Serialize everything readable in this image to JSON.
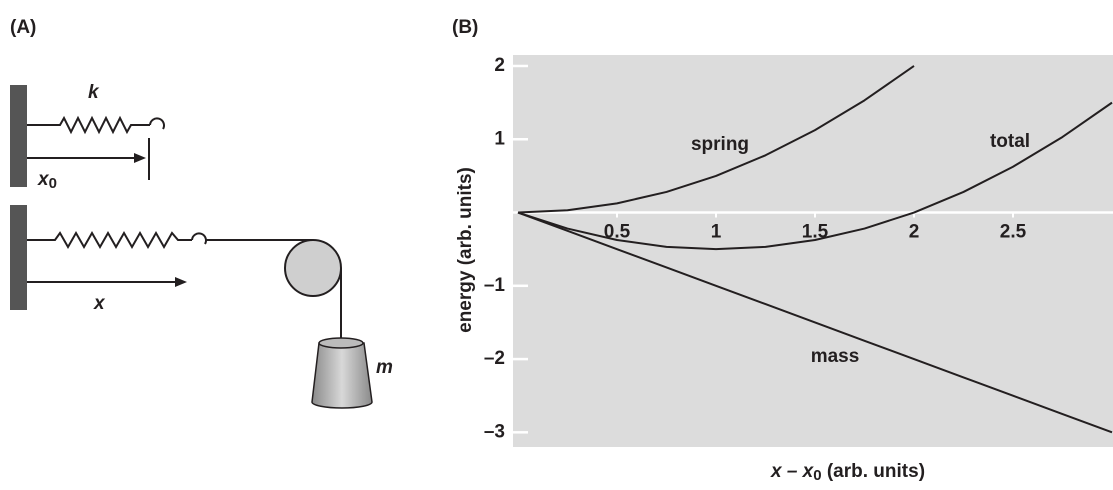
{
  "panel_a": {
    "label": "(A)",
    "spring_constant": "k",
    "x0": {
      "base": "x",
      "sub": "0"
    },
    "x": "x",
    "mass": "m"
  },
  "chart_data": {
    "type": "line",
    "panel_label": "(B)",
    "x": [
      0,
      0.25,
      0.5,
      0.75,
      1,
      1.25,
      1.5,
      1.75,
      2,
      2.25,
      2.5,
      2.75,
      3
    ],
    "series": [
      {
        "name": "spring",
        "color": "#231f20",
        "values": [
          0,
          0.03125,
          0.125,
          0.28125,
          0.5,
          0.78125,
          1.125,
          1.53125,
          2,
          null,
          null,
          null,
          null
        ]
      },
      {
        "name": "total",
        "color": "#231f20",
        "values": [
          0,
          -0.21875,
          -0.375,
          -0.46875,
          -0.5,
          -0.46875,
          -0.375,
          -0.21875,
          0,
          0.28125,
          0.625,
          1.03125,
          1.5
        ]
      },
      {
        "name": "mass",
        "color": "#231f20",
        "values": [
          0,
          -0.25,
          -0.5,
          -0.75,
          -1,
          -1.25,
          -1.5,
          -1.75,
          -2,
          -2.25,
          -2.5,
          -2.75,
          -3
        ]
      }
    ],
    "xlim": [
      0,
      3
    ],
    "ylim": [
      -3.2,
      2.15
    ],
    "xticks": [
      0.5,
      1,
      1.5,
      2,
      2.5
    ],
    "yticks": [
      {
        "value": -3,
        "label": "–3"
      },
      {
        "value": -2,
        "label": "–2"
      },
      {
        "value": -1,
        "label": "–1"
      },
      1,
      2
    ],
    "y_label": "energy (arb. units)",
    "x_label": {
      "base": "x – x",
      "sub": "0",
      "unit": " (arb. units)"
    }
  }
}
